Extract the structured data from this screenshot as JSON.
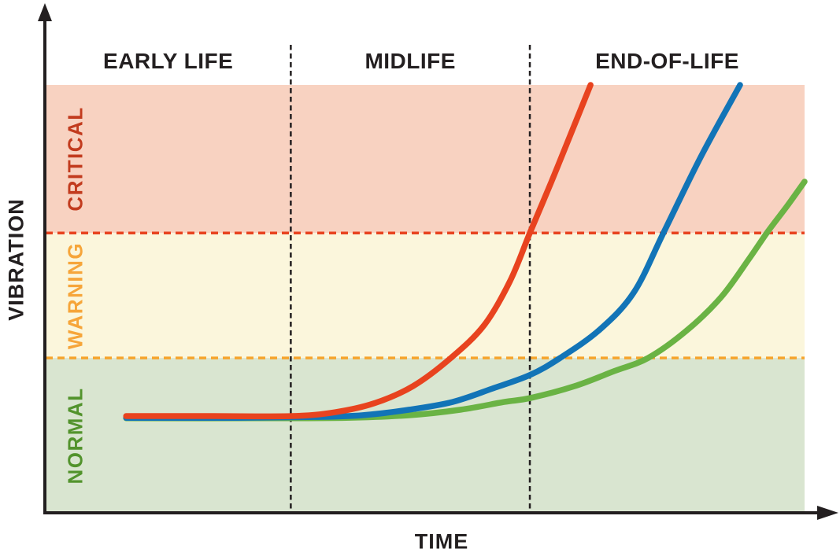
{
  "chart_data": {
    "type": "line",
    "title": "",
    "xlabel": "TIME",
    "ylabel": "VIBRATION",
    "x_axis": {
      "min": 0,
      "max": 100,
      "ticks": "none",
      "unit": "qualitative time"
    },
    "y_axis": {
      "min": 0,
      "max": 100,
      "ticks": "none",
      "unit": "qualitative vibration level"
    },
    "grid": "off",
    "legend": "none",
    "axis_color": "#231f20",
    "divider_color": "#231f20",
    "phases": [
      {
        "label": "EARLY LIFE",
        "start": 0,
        "end": 32.3
      },
      {
        "label": "MIDLIFE",
        "start": 32.3,
        "end": 63.8
      },
      {
        "label": "END-OF-LIFE",
        "start": 63.8,
        "end": 100
      }
    ],
    "zones": [
      {
        "label": "NORMAL",
        "from": 0,
        "to": 36.2,
        "band_color": "#d9e5d0",
        "label_color": "#52932c"
      },
      {
        "label": "WARNING",
        "from": 36.2,
        "to": 65.4,
        "band_color": "#fbf6dc",
        "label_color": "#f6a53a"
      },
      {
        "label": "CRITICAL",
        "from": 65.4,
        "to": 100,
        "band_color": "#f8d2c1",
        "label_color": "#c23b1e"
      }
    ],
    "thresholds": [
      {
        "name": "warning-threshold",
        "value": 36.2,
        "color": "#f6a52d"
      },
      {
        "name": "critical-threshold",
        "value": 65.4,
        "color": "#e8431f"
      }
    ],
    "series": [
      {
        "name": "fast-degradation-curve",
        "color": "#e8431f",
        "points": [
          [
            10.6,
            22.6
          ],
          [
            22.0,
            22.6
          ],
          [
            32.4,
            22.6
          ],
          [
            38.1,
            23.5
          ],
          [
            43.3,
            25.6
          ],
          [
            48.4,
            29.6
          ],
          [
            53.4,
            36.2
          ],
          [
            57.8,
            43.9
          ],
          [
            61.2,
            54.2
          ],
          [
            63.8,
            65.4
          ],
          [
            66.6,
            77.2
          ],
          [
            69.3,
            89.0
          ],
          [
            71.8,
            100
          ]
        ]
      },
      {
        "name": "medium-degradation-curve",
        "color": "#1274b7",
        "points": [
          [
            10.6,
            22.2
          ],
          [
            25.1,
            22.2
          ],
          [
            35.5,
            22.4
          ],
          [
            41.7,
            22.8
          ],
          [
            47.9,
            24.1
          ],
          [
            53.6,
            25.9
          ],
          [
            58.8,
            29.0
          ],
          [
            63.8,
            32.2
          ],
          [
            67.8,
            36.2
          ],
          [
            73.0,
            42.8
          ],
          [
            77.5,
            51.5
          ],
          [
            81.4,
            65.4
          ],
          [
            86.3,
            83.1
          ],
          [
            91.5,
            100
          ]
        ]
      },
      {
        "name": "slow-degradation-curve",
        "color": "#6ab344",
        "points": [
          [
            10.6,
            22.1
          ],
          [
            27.2,
            22.1
          ],
          [
            39.6,
            22.2
          ],
          [
            47.9,
            22.8
          ],
          [
            54.7,
            24.1
          ],
          [
            60.4,
            25.9
          ],
          [
            63.8,
            26.8
          ],
          [
            69.7,
            29.6
          ],
          [
            74.9,
            33.1
          ],
          [
            79.4,
            36.2
          ],
          [
            84.4,
            42.5
          ],
          [
            89.0,
            50.4
          ],
          [
            92.7,
            59.4
          ],
          [
            95.1,
            65.6
          ],
          [
            97.7,
            71.7
          ],
          [
            100,
            77.4
          ]
        ]
      }
    ]
  }
}
